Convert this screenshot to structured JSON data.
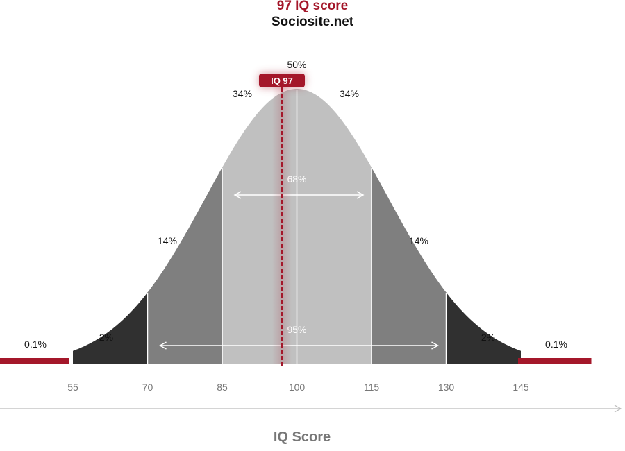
{
  "header": {
    "title": "97 IQ score",
    "subtitle": "Sociosite.net"
  },
  "colors": {
    "accent": "#a4172a",
    "band_68": "#c0c0c0",
    "band_14": "#7f7f7f",
    "band_2": "#303030",
    "tick_text": "#777777",
    "axis_label": "#777777"
  },
  "chart_data": {
    "type": "area",
    "title": "97 IQ score",
    "subtitle": "Sociosite.net",
    "xlabel": "IQ Score",
    "ylabel": "",
    "distribution": {
      "kind": "normal",
      "mean": 100,
      "sd": 15
    },
    "x_ticks": [
      55,
      70,
      85,
      100,
      115,
      130,
      145
    ],
    "marker": {
      "value": 97,
      "label": "IQ 97"
    },
    "bands": [
      {
        "from": 40,
        "to": 55,
        "percent": "0.1%",
        "shade": "accent"
      },
      {
        "from": 55,
        "to": 70,
        "percent": "2%",
        "shade": "band_2"
      },
      {
        "from": 70,
        "to": 85,
        "percent": "14%",
        "shade": "band_14"
      },
      {
        "from": 85,
        "to": 100,
        "percent": "34%",
        "shade": "band_68"
      },
      {
        "from": 100,
        "to": 115,
        "percent": "34%",
        "shade": "band_68"
      },
      {
        "from": 115,
        "to": 130,
        "percent": "14%",
        "shade": "band_14"
      },
      {
        "from": 130,
        "to": 145,
        "percent": "2%",
        "shade": "band_2"
      },
      {
        "from": 145,
        "to": 160,
        "percent": "0.1%",
        "shade": "accent"
      }
    ],
    "center_label": "50%",
    "ranges": [
      {
        "from": 85,
        "to": 115,
        "label": "68%"
      },
      {
        "from": 70,
        "to": 130,
        "label": "95%"
      }
    ]
  }
}
